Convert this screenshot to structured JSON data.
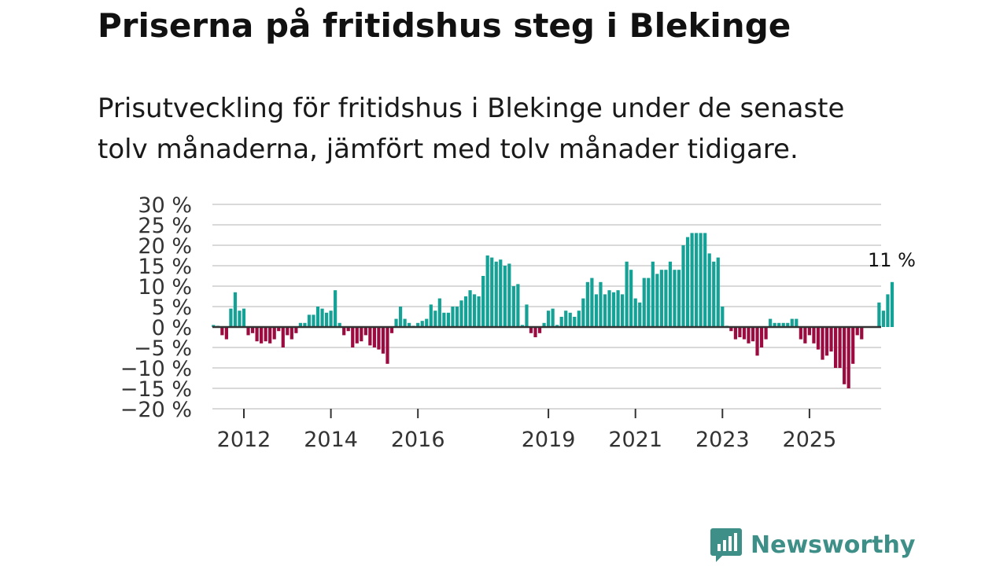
{
  "header": {
    "title": "Priserna på fritidshus steg i Blekinge",
    "subtitle": "Prisutveckling för fritidshus i Blekinge under de senaste tolv månaderna, jämfört med tolv månader tidigare."
  },
  "brand": {
    "name": "Newsworthy"
  },
  "colors": {
    "positive": "#14a196",
    "negative": "#9b0b3f",
    "grid": "#d9d9d9",
    "baseline": "#333333",
    "brand": "#3e8f88"
  },
  "chart_data": {
    "type": "bar",
    "title": "Priserna på fritidshus steg i Blekinge",
    "ylabel": "",
    "xlabel": "",
    "ylim": [
      -20,
      30
    ],
    "y_ticks": [
      30,
      25,
      20,
      15,
      10,
      5,
      0,
      -5,
      -10,
      -15,
      -20
    ],
    "y_tick_labels": [
      "30 %",
      "25 %",
      "20 %",
      "15 %",
      "10 %",
      "5 %",
      "0 %",
      "−5 %",
      "−10 %",
      "−15 %",
      "−20 %"
    ],
    "x_ticks": [
      {
        "label": "2012",
        "index": 0
      },
      {
        "label": "2014",
        "index": 20
      },
      {
        "label": "2016",
        "index": 40
      },
      {
        "label": "2019",
        "index": 70
      },
      {
        "label": "2021",
        "index": 90
      },
      {
        "label": "2023",
        "index": 110
      },
      {
        "label": "2025",
        "index": 130
      }
    ],
    "start_index": -7,
    "annotation": {
      "text": "11 %",
      "index": "last"
    },
    "values": [
      0.5,
      0.3,
      -2,
      -3,
      4.5,
      8.5,
      4,
      4.5,
      -2,
      -1.5,
      -3.5,
      -4,
      -3.5,
      -4,
      -3,
      -1,
      -5,
      -2,
      -3,
      -1.5,
      1,
      1,
      3,
      3,
      5,
      4.5,
      3.5,
      4,
      9,
      1,
      -2,
      -1,
      -5,
      -4,
      -3.5,
      -2,
      -4.5,
      -5,
      -5.5,
      -6.5,
      -9,
      -1.5,
      2,
      5,
      2,
      1,
      0.3,
      1,
      1.5,
      2,
      5.5,
      4,
      7,
      3.5,
      3.5,
      5,
      5,
      6.5,
      7.5,
      9,
      8,
      7.5,
      12.5,
      17.5,
      17,
      16,
      16.5,
      15,
      15.5,
      10,
      10.5,
      0.5,
      5.5,
      -1.5,
      -2.5,
      -1.5,
      1,
      4,
      4.5,
      0.5,
      2.5,
      4,
      3.5,
      2.5,
      4,
      7,
      11,
      12,
      8,
      11,
      8,
      9,
      8.5,
      9,
      8,
      16,
      14,
      7,
      6,
      12,
      12,
      16,
      13,
      14,
      14,
      16,
      14,
      14,
      20,
      22,
      23,
      23,
      23,
      23,
      18,
      16,
      17,
      5,
      0.3,
      -1,
      -3,
      -2.5,
      -3,
      -4,
      -3.5,
      -7,
      -5,
      -3,
      2,
      1,
      1,
      1,
      1,
      2,
      2,
      -3,
      -4,
      -2,
      -4,
      -5.5,
      -8,
      -7,
      -6,
      -10,
      -10,
      -14,
      -15,
      -9,
      -2,
      -3,
      0,
      0,
      0,
      6,
      4,
      8,
      11
    ]
  }
}
